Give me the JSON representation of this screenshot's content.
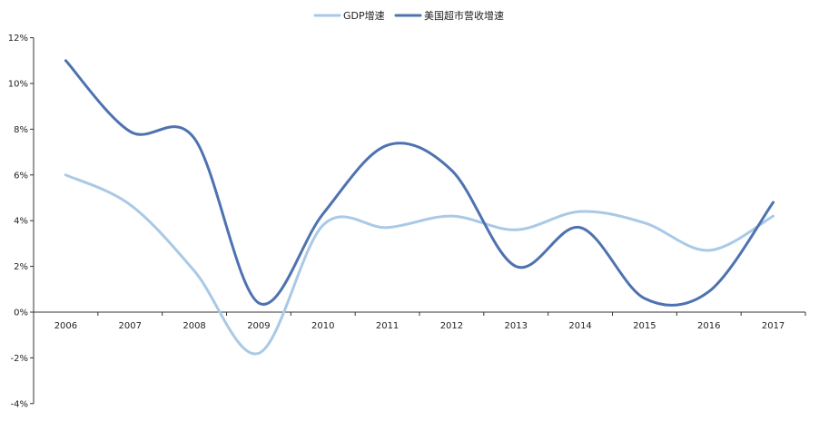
{
  "chart_data": {
    "type": "line",
    "title": "",
    "xlabel": "",
    "ylabel": "",
    "categories": [
      "2006",
      "2007",
      "2008",
      "2009",
      "2010",
      "2011",
      "2012",
      "2013",
      "2014",
      "2015",
      "2016",
      "2017"
    ],
    "y_ticks": [
      "12%",
      "10%",
      "8%",
      "6%",
      "4%",
      "2%",
      "0%",
      "-2%",
      "-4%"
    ],
    "y_tick_values": [
      12,
      10,
      8,
      6,
      4,
      2,
      0,
      -2,
      -4
    ],
    "ylim": [
      -4,
      12
    ],
    "y_unit": "%",
    "grid": false,
    "legend_position": "top-center",
    "smooth": true,
    "series": [
      {
        "name": "GDP增速",
        "color": "#a9c9e6",
        "values": [
          6.0,
          4.7,
          1.8,
          -1.8,
          3.8,
          3.7,
          4.2,
          3.6,
          4.4,
          3.9,
          2.7,
          4.2
        ]
      },
      {
        "name": "美国超市营收增速",
        "color": "#4e72b0",
        "values": [
          11.0,
          7.9,
          7.6,
          0.4,
          4.3,
          7.3,
          6.2,
          2.0,
          3.7,
          0.6,
          0.9,
          4.8
        ]
      }
    ]
  }
}
